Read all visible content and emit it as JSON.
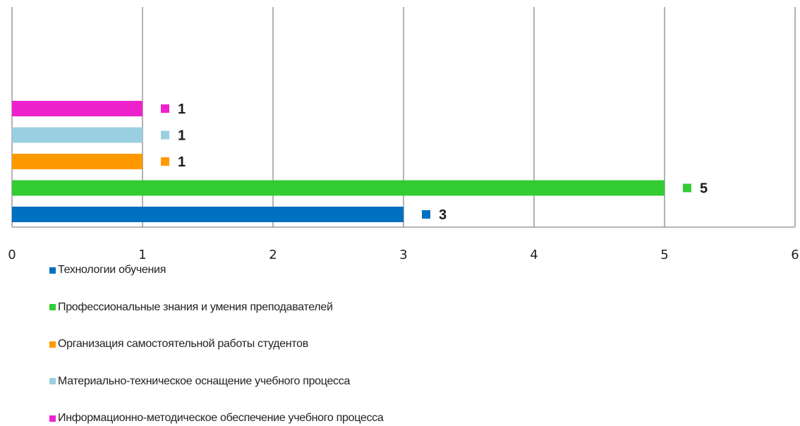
{
  "chart_data": {
    "type": "bar",
    "orientation": "horizontal",
    "title": "",
    "xlabel": "",
    "ylabel": "",
    "xlim": [
      0,
      6
    ],
    "x_ticks": [
      "0",
      "1",
      "2",
      "3",
      "4",
      "5",
      "6"
    ],
    "grid": "vertical",
    "legend_position": "bottom-left",
    "series": [
      {
        "name": "Технологии обучения",
        "value": 3,
        "label": "3",
        "color": "#0070c0"
      },
      {
        "name": "Профессиональные знания и умения преподавателей",
        "value": 5,
        "label": "5",
        "color": "#33cc33"
      },
      {
        "name": "Организация самостоятельной работы студентов",
        "value": 1,
        "label": "1",
        "color": "#ff9900"
      },
      {
        "name": "Материально-техническое оснащение учебного процесса",
        "value": 1,
        "label": "1",
        "color": "#99cfe0"
      },
      {
        "name": "Информационно-методическое обеспечение учебного процесса",
        "value": 1,
        "label": "1",
        "color": "#ee22cc"
      }
    ]
  }
}
